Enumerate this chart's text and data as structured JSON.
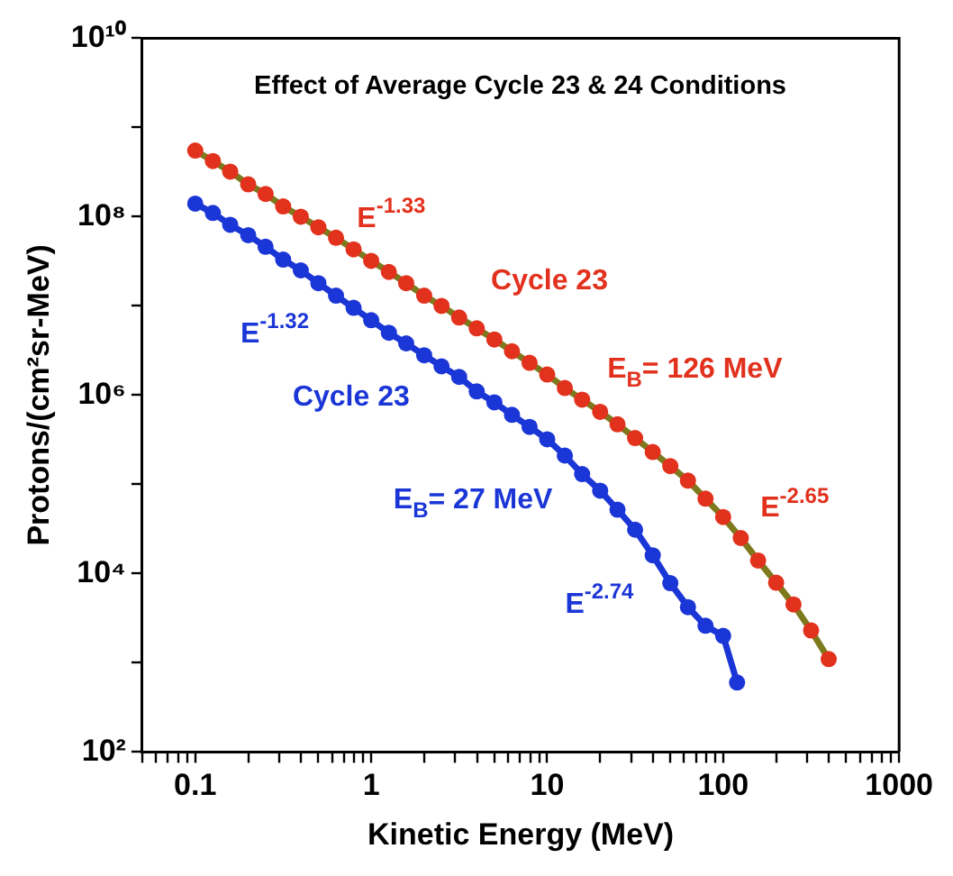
{
  "chart_data": {
    "type": "scatter",
    "title": "Effect of Average Cycle 23 & 24 Conditions",
    "xlabel": "Kinetic Energy (MeV)",
    "ylabel": "Protons/(cm²sr-MeV)",
    "log": "xy",
    "marker": "circle",
    "xlim": [
      0.05,
      1000
    ],
    "ylim": [
      100,
      10000000000
    ],
    "xticks": [
      {
        "value": 0.05,
        "label": null
      },
      {
        "value": 0.06,
        "label": null
      },
      {
        "value": 0.07,
        "label": null
      },
      {
        "value": 0.08,
        "label": null
      },
      {
        "value": 0.09,
        "label": null
      },
      0.1,
      {
        "value": 0.2,
        "label": null
      },
      {
        "value": 0.3,
        "label": null
      },
      {
        "value": 0.4,
        "label": null
      },
      {
        "value": 0.5,
        "label": null
      },
      {
        "value": 0.6,
        "label": null
      },
      {
        "value": 0.7,
        "label": null
      },
      {
        "value": 0.8,
        "label": null
      },
      {
        "value": 0.9,
        "label": null
      },
      1,
      {
        "value": 2,
        "label": null
      },
      {
        "value": 3,
        "label": null
      },
      {
        "value": 4,
        "label": null
      },
      {
        "value": 5,
        "label": null
      },
      {
        "value": 6,
        "label": null
      },
      {
        "value": 7,
        "label": null
      },
      {
        "value": 8,
        "label": null
      },
      {
        "value": 9,
        "label": null
      },
      10,
      {
        "value": 20,
        "label": null
      },
      {
        "value": 30,
        "label": null
      },
      {
        "value": 40,
        "label": null
      },
      {
        "value": 50,
        "label": null
      },
      {
        "value": 60,
        "label": null
      },
      {
        "value": 70,
        "label": null
      },
      {
        "value": 80,
        "label": null
      },
      {
        "value": 90,
        "label": null
      },
      100,
      {
        "value": 200,
        "label": null
      },
      {
        "value": 300,
        "label": null
      },
      {
        "value": 400,
        "label": null
      },
      {
        "value": 500,
        "label": null
      },
      {
        "value": 600,
        "label": null
      },
      {
        "value": 700,
        "label": null
      },
      {
        "value": 800,
        "label": null
      },
      {
        "value": 900,
        "label": null
      },
      1000
    ],
    "yticks": [
      {
        "value": 100,
        "label": "10²"
      },
      {
        "value": 1000,
        "label": null
      },
      {
        "value": 10000,
        "label": "10⁴"
      },
      {
        "value": 100000,
        "label": null
      },
      {
        "value": 1000000,
        "label": "10⁶"
      },
      {
        "value": 10000000,
        "label": null
      },
      {
        "value": 100000000,
        "label": "10⁸"
      },
      {
        "value": 1000000000,
        "label": null
      },
      {
        "value": 10000000000,
        "label": "10¹⁰"
      }
    ],
    "series": [
      {
        "type": "line",
        "marker": "none",
        "color": "#7d7a1e",
        "x": [
          0.1,
          0.126,
          0.158,
          0.2,
          0.251,
          0.316,
          0.398,
          0.501,
          0.631,
          0.794,
          1,
          1.26,
          1.58,
          2,
          2.51,
          3.16,
          3.98,
          5.01,
          6.31,
          7.94,
          10,
          12.6,
          15.8,
          20,
          25.1,
          31.6,
          39.8,
          50.1,
          63.1,
          79.4,
          100,
          126,
          158,
          200,
          251,
          316,
          398
        ],
        "values": [
          550000000.0,
          420000000.0,
          320000000.0,
          230000000.0,
          180000000.0,
          130000000.0,
          100000000.0,
          76000000.0,
          58000000.0,
          43000000.0,
          32000000.0,
          24000000.0,
          18000000.0,
          13000000.0,
          10000000.0,
          7400000.0,
          5600000.0,
          4200000.0,
          3100000.0,
          2300000.0,
          1700000.0,
          1200000.0,
          890000.0,
          650000.0,
          470000.0,
          330000.0,
          230000.0,
          160000.0,
          110000.0,
          69000.0,
          43000.0,
          25000.0,
          14000.0,
          7900.0,
          4500.0,
          2300.0,
          1100.0
        ]
      },
      {
        "color": "#e2311d",
        "x": [
          0.1,
          0.126,
          0.158,
          0.2,
          0.251,
          0.316,
          0.398,
          0.501,
          0.631,
          0.794,
          1,
          1.26,
          1.58,
          2,
          2.51,
          3.16,
          3.98,
          5.01,
          6.31,
          7.94,
          10,
          12.6,
          15.8,
          20,
          25.1,
          31.6,
          39.8,
          50.1,
          63.1,
          79.4,
          100,
          126,
          158,
          200,
          251,
          316,
          398
        ],
        "values": [
          550000000.0,
          420000000.0,
          320000000.0,
          230000000.0,
          180000000.0,
          130000000.0,
          100000000.0,
          76000000.0,
          58000000.0,
          43000000.0,
          32000000.0,
          24000000.0,
          18000000.0,
          13000000.0,
          10000000.0,
          7400000.0,
          5600000.0,
          4200000.0,
          3100000.0,
          2300000.0,
          1700000.0,
          1200000.0,
          890000.0,
          650000.0,
          470000.0,
          330000.0,
          230000.0,
          160000.0,
          110000.0,
          69000.0,
          43000.0,
          25000.0,
          14000.0,
          7900.0,
          4500.0,
          2300.0,
          1100.0
        ]
      },
      {
        "type": "line",
        "marker": "none",
        "color": "#1b36d6",
        "x": [
          0.1,
          0.126,
          0.158,
          0.2,
          0.251,
          0.316,
          0.398,
          0.501,
          0.631,
          0.794,
          1,
          1.26,
          1.58,
          2,
          2.51,
          3.16,
          3.98,
          5.01,
          6.31,
          7.94,
          10,
          12.6,
          15.8,
          20,
          25.1,
          31.6,
          39.8,
          50.1,
          63.1,
          79.4,
          100,
          120
        ],
        "values": [
          140000000.0,
          110000000.0,
          81000000.0,
          62000000.0,
          46000000.0,
          33000000.0,
          25000000.0,
          18000000.0,
          13000000.0,
          9500000.0,
          6900000.0,
          5000000.0,
          3800000.0,
          2800000.0,
          2100000.0,
          1600000.0,
          1100000.0,
          830000.0,
          600000.0,
          440000.0,
          320000.0,
          210000.0,
          130000.0,
          85000.0,
          52000.0,
          31000.0,
          16000.0,
          7800.0,
          4200.0,
          2600.0,
          2000.0,
          600.0
        ]
      },
      {
        "color": "#1b36d6",
        "x": [
          0.1,
          0.126,
          0.158,
          0.2,
          0.251,
          0.316,
          0.398,
          0.501,
          0.631,
          0.794,
          1,
          1.26,
          1.58,
          2,
          2.51,
          3.16,
          3.98,
          5.01,
          6.31,
          7.94,
          10,
          12.6,
          15.8,
          20,
          25.1,
          31.6,
          39.8,
          50.1,
          63.1,
          79.4,
          100,
          120
        ],
        "values": [
          140000000.0,
          110000000.0,
          81000000.0,
          62000000.0,
          46000000.0,
          33000000.0,
          25000000.0,
          18000000.0,
          13000000.0,
          9500000.0,
          6900000.0,
          5000000.0,
          3800000.0,
          2800000.0,
          2100000.0,
          1600000.0,
          1100000.0,
          830000.0,
          600000.0,
          440000.0,
          320000.0,
          210000.0,
          130000.0,
          85000.0,
          52000.0,
          31000.0,
          16000.0,
          7800.0,
          4200.0,
          2600.0,
          2000.0,
          600.0
        ]
      }
    ],
    "annotations": [
      "E$^{-1.33}$",
      "Cycle 23",
      "E$_{B}$= 126 MeV",
      "E$^{-2.65}$",
      "E$^{-1.32}$",
      "Cycle 23",
      "E$_{B}$= 27 MeV",
      "E$^{-2.74}$"
    ]
  }
}
